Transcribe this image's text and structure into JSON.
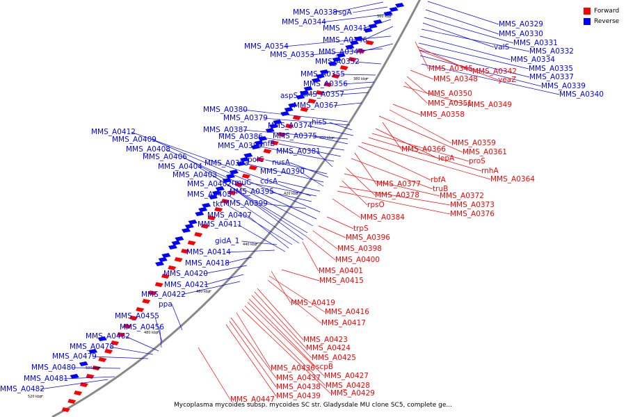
{
  "caption": "Mycoplasma mycoides subsp. mycoides SC str. Gladysdale MU clone SC5, complete ge...",
  "legend": [
    {
      "label": "Forward",
      "color": "#ff0000"
    },
    {
      "label": "Reverse",
      "color": "#0000ff"
    }
  ],
  "colors": {
    "forward": "#ff0000",
    "reverse": "#0000ff",
    "backbone": "#888888"
  },
  "ticks": [
    "360 kbp",
    "380 kbp",
    "400 kbp",
    "420 kbp",
    "440 kbp",
    "460 kbp",
    "480 kbp",
    "500 kbp",
    "520 kbp"
  ],
  "reverse_labels": [
    "MMS_A0338",
    "rsgA",
    "MMS_A0344",
    "MMS_A0341",
    "MMS_A0346",
    "MMS_A0354",
    "MMS_A0347",
    "MMS_A0353",
    "MMS_A0352",
    "MMS_A0355",
    "MMS_A0356",
    "aspS",
    "MMS_A0357",
    "MMS_A0367",
    "MMS_A0380",
    "MMS_A0379",
    "hisS",
    "MMS_A0412",
    "MMS_A0374",
    "MMS_A0387",
    "MMS_A0375",
    "MMS_A0409",
    "MMS_A0386",
    "infB",
    "MMS_A0408",
    "MMS_A0389",
    "MMS_A0381",
    "MMS_A0406",
    "polC",
    "nusA",
    "MMS_A0404",
    "MMS_A0393",
    "MMS_A0390",
    "MMS_A0403",
    "cdsA",
    "MMS_A0402",
    "rmuC",
    "MMS_A0405",
    "MMS_A0395",
    "tkt",
    "MMS_A0399",
    "MMS_A0407",
    "MMS_A0411",
    "gidA_1",
    "MMS_A0414",
    "MMS_A0418",
    "MMS_A0420",
    "MMS_A0421",
    "MMS_A0422",
    "ppa",
    "MMS_A0455",
    "MMS_A0456",
    "MMS_A0462",
    "MMS_A0478",
    "MMS_A0479",
    "MMS_A0480",
    "MMS_A0481",
    "MMS_A0482",
    "MMS_A0329",
    "MMS_A0330",
    "MMS_A0331",
    "valS",
    "MMS_A0332",
    "MMS_A0334",
    "MMS_A0335",
    "MMS_A0337",
    "MMS_A0339",
    "MMS_A0340"
  ],
  "forward_labels": [
    "MMS_A0345",
    "MMS_A0342",
    "yeaZ",
    "MMS_A0348",
    "MMS_A0350",
    "MMS_A0351",
    "MMS_A0349",
    "MMS_A0358",
    "MMS_A0359",
    "MMS_A0366",
    "MMS_A0361",
    "lepA",
    "proS",
    "rnhA",
    "MMS_A0364",
    "rbfA",
    "MMS_A0377",
    "truB",
    "MMS_A0378",
    "MMS_A0372",
    "rpsO",
    "MMS_A0373",
    "MMS_A0376",
    "MMS_A0384",
    "trpS",
    "MMS_A0396",
    "MMS_A0398",
    "MMS_A0400",
    "MMS_A0401",
    "MMS_A0415",
    "MMS_A0419",
    "MMS_A0416",
    "MMS_A0417",
    "MMS_A0423",
    "MMS_A0424",
    "MMS_A0425",
    "scpB",
    "MMS_A0436",
    "MMS_A0427",
    "MMS_A0437",
    "MMS_A0428",
    "MMS_A0438",
    "MMS_A0429",
    "MMS_A0439",
    "MMS_A0447"
  ]
}
